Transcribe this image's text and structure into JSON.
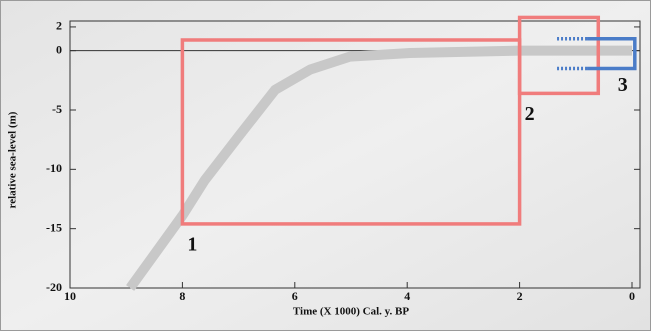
{
  "chart_data": {
    "type": "line",
    "xlabel": "Time (X 1000) Cal. y. BP",
    "ylabel": "relative sea-level (m)",
    "x": [
      8.93,
      8.0,
      7.6,
      6.98,
      6.35,
      5.73,
      5.02,
      3.95,
      2.0,
      0.0
    ],
    "values": [
      -20,
      -13.9,
      -10.9,
      -7.1,
      -3.3,
      -1.6,
      -0.5,
      -0.2,
      0,
      0
    ],
    "color": "#c8c8c8",
    "xlim": [
      10,
      0
    ],
    "xticks": [
      10,
      8,
      6,
      4,
      2,
      0
    ],
    "ylim": [
      -20,
      2.5
    ],
    "yticks": [
      2,
      0,
      -5,
      -10,
      -15,
      -20
    ],
    "zero_line": true,
    "regions": [
      {
        "label": "1",
        "xlim": [
          8,
          2
        ],
        "ylim": [
          -14.6,
          0.9
        ],
        "color": "#f07c7c",
        "style": "box"
      },
      {
        "label": "2",
        "xlim": [
          2,
          0.6
        ],
        "ylim": [
          -3.6,
          2.8
        ],
        "color": "#f07c7c",
        "style": "box"
      },
      {
        "label": "3",
        "xlim": [
          0.8,
          -0.05
        ],
        "ylim": [
          -1.5,
          1.0
        ],
        "color": "#4a7cc8",
        "style": "bracket"
      }
    ],
    "label_color": "#b0306e"
  }
}
